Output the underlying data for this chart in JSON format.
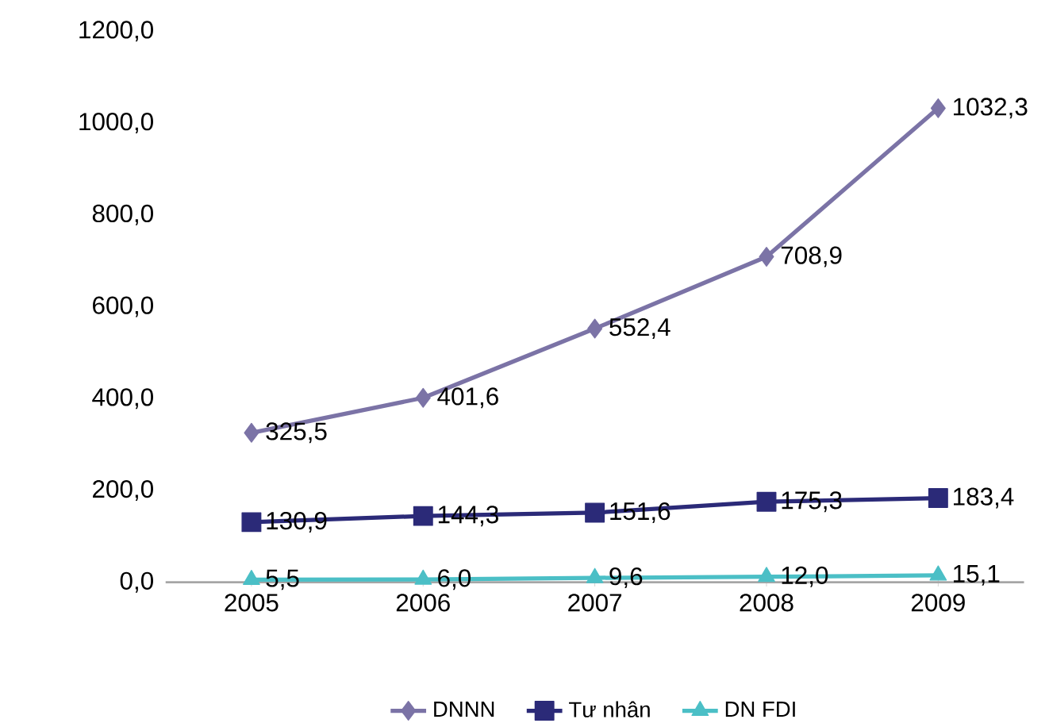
{
  "chart_data": {
    "type": "line",
    "categories": [
      "2005",
      "2006",
      "2007",
      "2008",
      "2009"
    ],
    "series": [
      {
        "name": "DNNN",
        "color": "#7b73a6",
        "marker": "diamond",
        "values": [
          325.5,
          401.6,
          552.4,
          708.9,
          1032.3
        ],
        "value_labels": [
          "325,5",
          "401,6",
          "552,4",
          "708,9",
          "1032,3"
        ]
      },
      {
        "name": "Tư nhân",
        "color": "#2b2a78",
        "marker": "square",
        "values": [
          130.9,
          144.3,
          151.6,
          175.3,
          183.4
        ],
        "value_labels": [
          "130,9",
          "144,3",
          "151,6",
          "175,3",
          "183,4"
        ]
      },
      {
        "name": "DN FDI",
        "color": "#4bbfc6",
        "marker": "triangle",
        "values": [
          5.5,
          6.0,
          9.6,
          12.0,
          15.1
        ],
        "value_labels": [
          "5,5",
          "6,0",
          "9,6",
          "12,0",
          "15,1"
        ]
      }
    ],
    "ylim": [
      0,
      1200
    ],
    "yticks": [
      {
        "value": 0,
        "label": "0,0"
      },
      {
        "value": 200,
        "label": "200,0"
      },
      {
        "value": 400,
        "label": "400,0"
      },
      {
        "value": 600,
        "label": "600,0"
      },
      {
        "value": 800,
        "label": "800,0"
      },
      {
        "value": 1000,
        "label": "1000,0"
      },
      {
        "value": 1200,
        "label": "1200,0"
      }
    ],
    "legend": "bottom",
    "line_style": "solid"
  }
}
